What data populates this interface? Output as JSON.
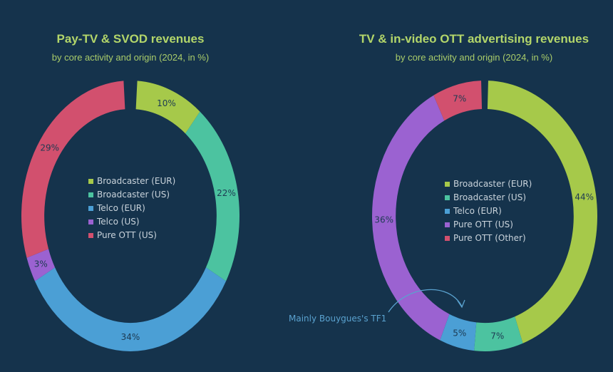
{
  "chart_data": [
    {
      "type": "pie",
      "title": "Pay-TV & SVOD revenues",
      "subtitle": "by core activity and origin (2024, in %)",
      "categories": [
        "Broadcaster (EUR)",
        "Broadcaster (US)",
        "Telco (EUR)",
        "Telco (US)",
        "Pure OTT (US)"
      ],
      "values": [
        10,
        22,
        34,
        3,
        29
      ],
      "labels": [
        "10%",
        "22%",
        "34%",
        "3%",
        "29%"
      ],
      "colors": [
        "#a6c94a",
        "#4cc3a0",
        "#4b9fd5",
        "#9b62d1",
        "#d2506e"
      ],
      "legend": "center"
    },
    {
      "type": "pie",
      "title": "TV & in-video OTT advertising revenues",
      "subtitle": "by core activity and origin (2024, in %)",
      "categories": [
        "Broadcaster (EUR)",
        "Broadcaster (US)",
        "Telco (EUR)",
        "Pure OTT (US)",
        "Pure OTT (Other)"
      ],
      "values": [
        44,
        7,
        5,
        36,
        7
      ],
      "labels": [
        "44%",
        "7%",
        "5%",
        "36%",
        "7%"
      ],
      "colors": [
        "#a6c94a",
        "#4cc3a0",
        "#4b9fd5",
        "#9b62d1",
        "#d2506e"
      ],
      "legend": "center",
      "annotation": "Mainly Bouygues's TF1"
    }
  ]
}
